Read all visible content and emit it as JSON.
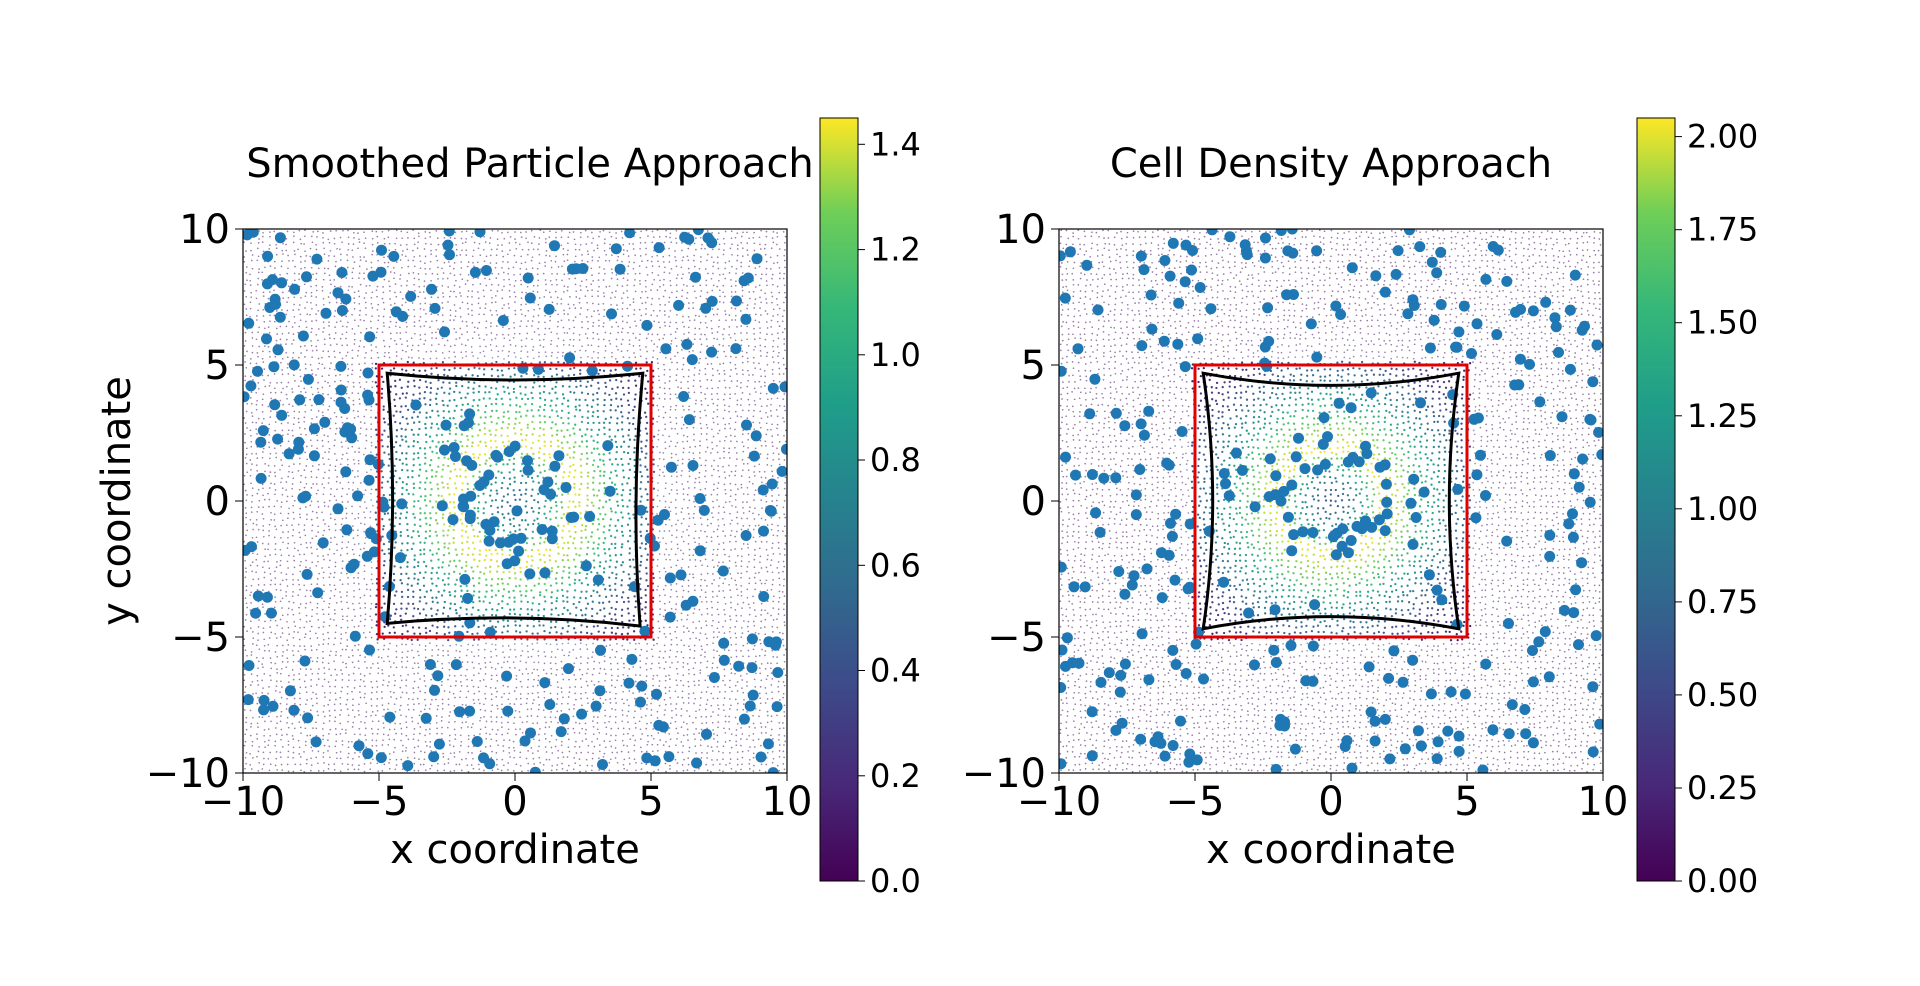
{
  "chart_data": [
    {
      "type": "scatter",
      "title": "Smoothed Particle Approach",
      "xlabel": "x coordinate",
      "ylabel": "y coordinate",
      "xlim": [
        -10,
        10
      ],
      "ylim": [
        -10,
        10
      ],
      "xticks": [
        "−10",
        "−5",
        "0",
        "5",
        "10"
      ],
      "yticks": [
        "−10",
        "−5",
        "0",
        "5",
        "10"
      ],
      "xtick_values": [
        -10,
        -5,
        0,
        5,
        10
      ],
      "ytick_values": [
        -10,
        -5,
        0,
        5,
        10
      ],
      "colorbar": {
        "min": 0.0,
        "max": 1.45,
        "ticks": [
          0.0,
          0.2,
          0.4,
          0.6,
          0.8,
          1.0,
          1.2,
          1.4
        ],
        "tick_labels": [
          "0.0",
          "0.2",
          "0.4",
          "0.6",
          "0.8",
          "1.0",
          "1.2",
          "1.4"
        ],
        "colormap": "viridis"
      },
      "density_ring": {
        "center": [
          0,
          0
        ],
        "ring_radius": 2.0,
        "peak": 1.42,
        "inner_min": 0.55
      },
      "reference_square": {
        "corners": [
          [
            -5,
            -5
          ],
          [
            5,
            -5
          ],
          [
            5,
            5
          ],
          [
            -5,
            5
          ]
        ],
        "color": "#e00000"
      },
      "deformed_square": {
        "corners": [
          [
            -4.7,
            -4.5
          ],
          [
            4.6,
            -4.6
          ],
          [
            4.7,
            4.7
          ],
          [
            -4.7,
            4.7
          ]
        ],
        "mid_pull": [
          0.2,
          0.25
        ],
        "color": "#000000"
      },
      "particles": {
        "count": 310,
        "color": "#1f77b4",
        "seed": 7
      }
    },
    {
      "type": "scatter",
      "title": "Cell Density Approach",
      "xlabel": "x coordinate",
      "ylabel": "",
      "xlim": [
        -10,
        10
      ],
      "ylim": [
        -10,
        10
      ],
      "xticks": [
        "−10",
        "−5",
        "0",
        "5",
        "10"
      ],
      "yticks": [
        "−10",
        "−5",
        "0",
        "5",
        "10"
      ],
      "xtick_values": [
        -10,
        -5,
        0,
        5,
        10
      ],
      "ytick_values": [
        -10,
        -5,
        0,
        5,
        10
      ],
      "colorbar": {
        "min": 0.0,
        "max": 2.05,
        "ticks": [
          0.0,
          0.25,
          0.5,
          0.75,
          1.0,
          1.25,
          1.5,
          1.75,
          2.0
        ],
        "tick_labels": [
          "0.00",
          "0.25",
          "0.50",
          "0.75",
          "1.00",
          "1.25",
          "1.50",
          "1.75",
          "2.00"
        ],
        "colormap": "viridis"
      },
      "density_ring": {
        "center": [
          0,
          0
        ],
        "ring_radius": 1.8,
        "peak": 2.0,
        "inner_min": 0.6
      },
      "reference_square": {
        "corners": [
          [
            -5,
            -5
          ],
          [
            5,
            -5
          ],
          [
            5,
            5
          ],
          [
            -5,
            5
          ]
        ],
        "color": "#e00000"
      },
      "deformed_square": {
        "corners": [
          [
            -4.7,
            -4.7
          ],
          [
            4.7,
            -4.7
          ],
          [
            4.7,
            4.7
          ],
          [
            -4.7,
            4.7
          ]
        ],
        "mid_pull": [
          0.35,
          0.45
        ],
        "color": "#000000"
      },
      "particles": {
        "count": 320,
        "color": "#1f77b4",
        "seed": 13
      }
    }
  ]
}
